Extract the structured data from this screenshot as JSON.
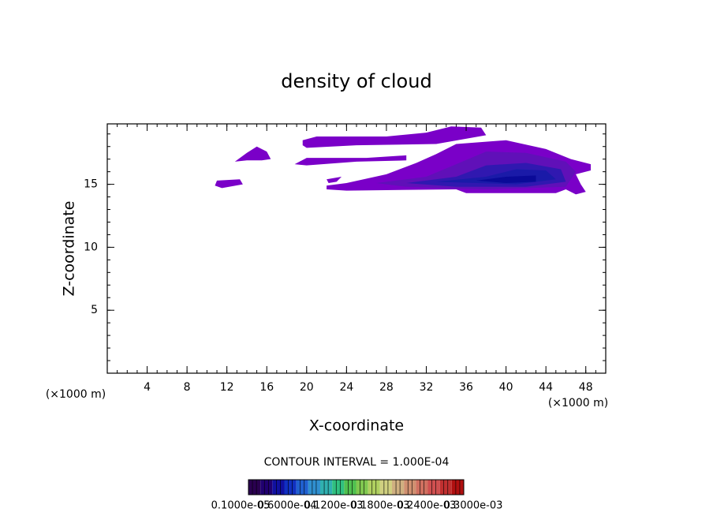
{
  "chart_data": {
    "type": "contour",
    "title": "density of cloud",
    "x_label": "X-coordinate",
    "y_label": "Z-coordinate",
    "x_unit": "(×1000 m)",
    "y_unit": "(×1000 m)",
    "xlim": [
      0,
      50
    ],
    "ylim": [
      0,
      19.8
    ],
    "xticks": [
      4,
      8,
      12,
      16,
      20,
      24,
      28,
      32,
      36,
      40,
      44,
      48
    ],
    "yticks": [
      5,
      10,
      15
    ],
    "minor_step": 1,
    "regions": [
      {
        "color": "#7a00c8",
        "x": [
          10.8,
          11.5,
          13.6,
          13.3,
          11
        ],
        "y": [
          14.9,
          14.7,
          15.0,
          15.4,
          15.3
        ]
      },
      {
        "color": "#7a00c8",
        "x": [
          12.8,
          14,
          15,
          16,
          16.4,
          15.5,
          14
        ],
        "y": [
          16.8,
          17.5,
          18,
          17.6,
          17.0,
          16.9,
          16.9
        ]
      },
      {
        "color": "#7a00c8",
        "x": [
          19.6,
          21,
          28,
          32,
          34.5,
          37.5,
          38,
          33,
          25,
          20,
          19.6
        ],
        "y": [
          18.5,
          18.8,
          18.8,
          19.1,
          19.6,
          19.5,
          18.9,
          18.2,
          18.1,
          17.9,
          18.1
        ]
      },
      {
        "color": "#7a00c8",
        "x": [
          18.8,
          20,
          26,
          30,
          30,
          25,
          20
        ],
        "y": [
          16.6,
          17.1,
          17.1,
          17.3,
          16.9,
          16.8,
          16.5
        ]
      },
      {
        "color": "#7a00c8",
        "x": [
          22,
          22,
          24,
          28,
          31,
          33,
          35,
          40,
          44,
          46.5,
          48.5,
          48.5,
          47,
          47.5,
          48,
          47,
          46,
          45,
          36,
          35,
          24
        ],
        "y": [
          14.6,
          14.9,
          15.1,
          15.8,
          16.7,
          17.4,
          18.2,
          18.5,
          17.8,
          17,
          16.6,
          16.1,
          15.8,
          15,
          14.4,
          14.2,
          14.6,
          14.3,
          14.3,
          14.6,
          14.5
        ]
      },
      {
        "color": "#7a00c8",
        "x": [
          22,
          23.5,
          23,
          22.2
        ],
        "y": [
          15.4,
          15.6,
          15.2,
          15.1
        ]
      },
      {
        "color": "#6010b8",
        "x": [
          27,
          32,
          35,
          38,
          42,
          46,
          47,
          46,
          38,
          30
        ],
        "y": [
          15.1,
          15.6,
          16.6,
          17.6,
          17.5,
          16.8,
          16,
          14.8,
          14.6,
          14.8
        ]
      },
      {
        "color": "#3018b0",
        "x": [
          30,
          35,
          38,
          42,
          45.5,
          46,
          42,
          35
        ],
        "y": [
          15.1,
          15.6,
          16.5,
          16.7,
          16.2,
          15.2,
          14.8,
          14.8
        ]
      },
      {
        "color": "#1a1aa8",
        "x": [
          33,
          38,
          41,
          44,
          45,
          41
        ],
        "y": [
          15.2,
          15.6,
          16.2,
          16.1,
          15.4,
          15.0
        ]
      },
      {
        "color": "#0a0a98",
        "x": [
          37,
          40,
          43,
          43,
          40
        ],
        "y": [
          15.3,
          15.6,
          15.7,
          15.2,
          15.1
        ]
      }
    ],
    "contour_interval": "CONTOUR INTERVAL = 1.000E-04",
    "colorbar": {
      "colors": [
        "#2a0050",
        "#200070",
        "#1010a0",
        "#1030c0",
        "#2060d0",
        "#3090d0",
        "#30b0b0",
        "#30c080",
        "#50c050",
        "#80c850",
        "#b0d060",
        "#d0d080",
        "#d0b080",
        "#d09070",
        "#d07060",
        "#d05050",
        "#c03030",
        "#b01010"
      ],
      "labels": [
        "0.1000e-05",
        "0.6000e-04",
        "0.1200e-03",
        "0.1800e-03",
        "0.2400e-03",
        "0.3000e-03"
      ]
    }
  }
}
